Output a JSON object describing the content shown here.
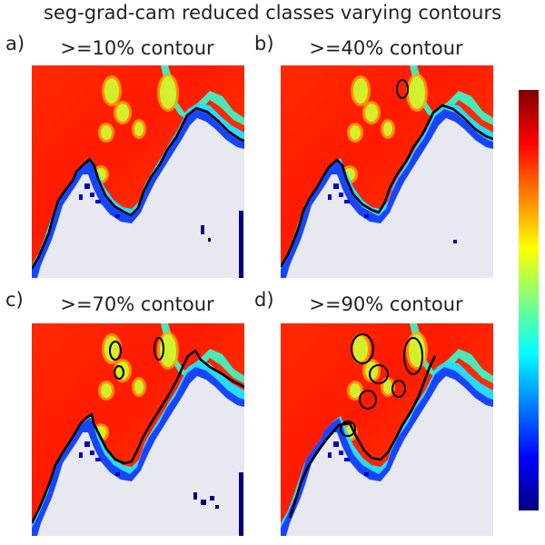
{
  "figure": {
    "title": "seg-grad-cam reduced classes varying contours"
  },
  "chart_data": {
    "type": "heatmap",
    "colormap": "jet",
    "background_color": "#e8e8f1",
    "contour_color": "#000000",
    "panels": [
      {
        "letter": "a)",
        "title": ">=10% contour",
        "threshold": 0.1
      },
      {
        "letter": "b)",
        "title": ">=40% contour",
        "threshold": 0.4
      },
      {
        "letter": "c)",
        "title": ">=70% contour",
        "threshold": 0.7
      },
      {
        "letter": "d)",
        "title": ">=90% contour",
        "threshold": 0.9
      }
    ],
    "colorbar": {
      "stops": [
        "#00007f",
        "#0000ff",
        "#007fff",
        "#00ffff",
        "#7fff7f",
        "#ffff00",
        "#ff7f00",
        "#ff0000",
        "#7f0000"
      ]
    }
  }
}
